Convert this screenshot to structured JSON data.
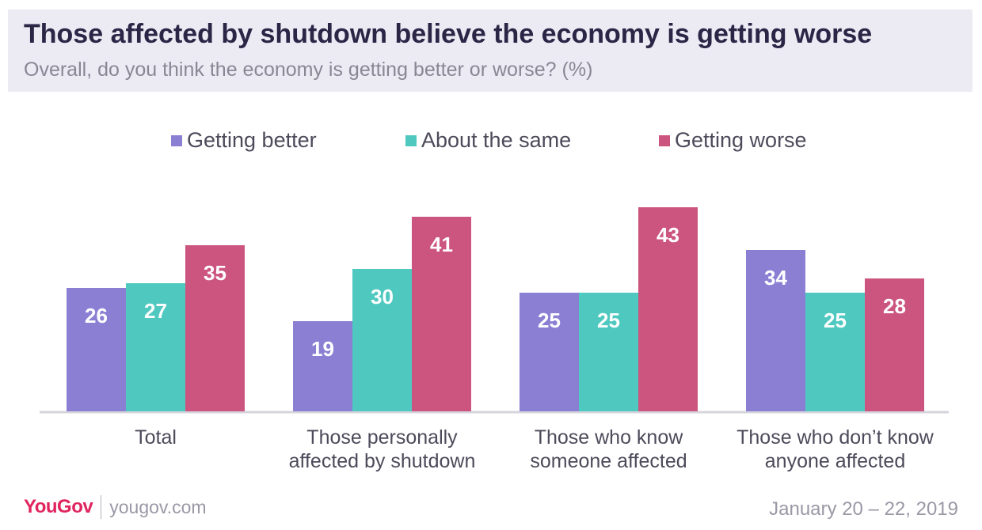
{
  "header": {
    "title": "Those affected by shutdown believe the economy is getting worse",
    "subtitle": "Overall, do you think the economy is getting better or worse? (%)"
  },
  "footer": {
    "logo": "YouGov",
    "site": "yougov.com",
    "date": "January 20 – 22, 2019"
  },
  "chart_data": {
    "type": "bar",
    "title": "Those affected by shutdown believe the economy is getting worse",
    "subtitle": "Overall, do you think the economy is getting better or worse? (%)",
    "categories": [
      "Total",
      "Those personally\naffected by shutdown",
      "Those who know\nsomeone affected",
      "Those who don’t know\nanyone affected"
    ],
    "series": [
      {
        "name": "Getting better",
        "color": "#8b7fd4",
        "values": [
          26,
          19,
          25,
          34
        ]
      },
      {
        "name": "About the same",
        "color": "#4fc9c0",
        "values": [
          27,
          30,
          25,
          25
        ]
      },
      {
        "name": "Getting worse",
        "color": "#cc5580",
        "values": [
          35,
          41,
          43,
          28
        ]
      }
    ],
    "ylim": [
      0,
      45
    ],
    "grid": false,
    "legend": "top-center",
    "data_labels": true
  }
}
